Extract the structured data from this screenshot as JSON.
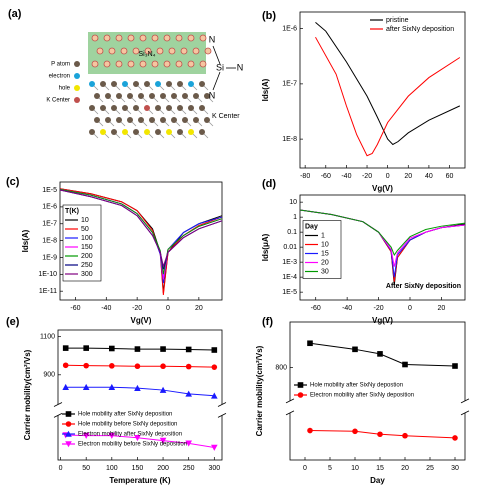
{
  "panel_a": {
    "label": "(a)",
    "layer": "Si₃N₄",
    "legend": [
      "P atom",
      "electron",
      "hole",
      "K Center"
    ],
    "molecule": [
      "N",
      "N",
      "Si",
      "N"
    ],
    "k_center": "K Center"
  },
  "chart_data": [
    {
      "type": "line",
      "label": "(b)",
      "log": true,
      "xlabel": "Vg(V)",
      "ylabel": "Ids(A)",
      "xlim": [
        -85,
        75
      ],
      "xticks": [
        -80,
        -60,
        -40,
        -20,
        0,
        20,
        40,
        60
      ],
      "ylim": [
        3e-09,
        2e-06
      ],
      "yticks": [
        {
          "value": 1e-08,
          "label": "1E-8"
        },
        {
          "value": 1e-07,
          "label": "1E-7"
        },
        {
          "value": 1e-06,
          "label": "1E-6"
        }
      ],
      "legend": "upper right",
      "series": [
        {
          "name": "pristine",
          "color": "#000000",
          "x": [
            -70,
            -60,
            -40,
            -20,
            -10,
            0,
            5,
            10,
            20,
            40,
            70
          ],
          "values": [
            1.3e-06,
            9e-07,
            2.5e-07,
            6e-08,
            2.5e-08,
            1e-08,
            8e-09,
            9e-09,
            1.3e-08,
            2.2e-08,
            4e-08
          ]
        },
        {
          "name": "after SixNy deposition",
          "color": "#ff0000",
          "x": [
            -70,
            -50,
            -40,
            -30,
            -20,
            -15,
            -10,
            0,
            20,
            40,
            70
          ],
          "values": [
            7e-07,
            1.5e-07,
            4e-08,
            1.2e-08,
            5e-09,
            5.5e-09,
            8e-09,
            2e-08,
            6e-08,
            1.3e-07,
            3e-07
          ]
        }
      ]
    },
    {
      "type": "line",
      "label": "(c)",
      "log": true,
      "xlabel": "Vg(V)",
      "ylabel": "Ids(A)",
      "xlim": [
        -70,
        35
      ],
      "xticks": [
        -60,
        -40,
        -20,
        0,
        20
      ],
      "ylim": [
        3e-12,
        3e-05
      ],
      "yticks": [
        {
          "value": 1e-11,
          "label": "1E-11"
        },
        {
          "value": 1e-10,
          "label": "1E-10"
        },
        {
          "value": 1e-09,
          "label": "1E-9"
        },
        {
          "value": 1e-08,
          "label": "1E-8"
        },
        {
          "value": 1e-07,
          "label": "1E-7"
        },
        {
          "value": 1e-06,
          "label": "1E-6"
        },
        {
          "value": 1e-05,
          "label": "1E-5"
        }
      ],
      "legend": "center left",
      "legend_title": "T(K)",
      "x": [
        -70,
        -50,
        -30,
        -20,
        -10,
        -5,
        -3,
        0,
        10,
        20,
        35
      ],
      "series": [
        {
          "name": "10",
          "color": "#000000",
          "values": [
            1.2e-05,
            6e-06,
            2e-06,
            6e-07,
            5e-08,
            2e-09,
            8e-12,
            2e-09,
            3e-08,
            1e-07,
            3e-07
          ]
        },
        {
          "name": "50",
          "color": "#ff0000",
          "values": [
            1.2e-05,
            6e-06,
            2e-06,
            6e-07,
            4e-08,
            1.5e-09,
            6e-12,
            2e-09,
            2e-08,
            8e-08,
            2.5e-07
          ]
        },
        {
          "name": "100",
          "color": "#1a1aff",
          "values": [
            1.1e-05,
            5e-06,
            1.5e-06,
            4e-07,
            3e-08,
            1.5e-09,
            3e-11,
            3e-09,
            3e-08,
            1e-07,
            2.5e-07
          ]
        },
        {
          "name": "150",
          "color": "#ff00ff",
          "values": [
            1.1e-05,
            5e-06,
            1.5e-06,
            4e-07,
            3e-08,
            2e-09,
            5e-11,
            3e-09,
            2e-08,
            7e-08,
            2e-07
          ]
        },
        {
          "name": "200",
          "color": "#009900",
          "values": [
            1.1e-05,
            5e-06,
            1.5e-06,
            4e-07,
            3e-08,
            2.5e-09,
            1e-10,
            3e-09,
            2e-08,
            7e-08,
            2e-07
          ]
        },
        {
          "name": "250",
          "color": "#000080",
          "values": [
            1e-05,
            4e-06,
            1.2e-06,
            3e-07,
            2e-08,
            2e-09,
            2e-10,
            2e-09,
            1.5e-08,
            5e-08,
            1.5e-07
          ]
        },
        {
          "name": "300",
          "color": "#800080",
          "values": [
            1e-05,
            4e-06,
            1.2e-06,
            3e-07,
            2e-08,
            2e-09,
            3e-10,
            2e-09,
            1.5e-08,
            5e-08,
            1.5e-07
          ]
        }
      ]
    },
    {
      "type": "line",
      "label": "(d)",
      "log": true,
      "xlabel": "Vg(V)",
      "ylabel": "Ids(μA)",
      "xlim": [
        -70,
        35
      ],
      "xticks": [
        -60,
        -40,
        -20,
        0,
        20
      ],
      "ylim": [
        3e-06,
        30
      ],
      "yticks": [
        {
          "value": 1e-05,
          "label": "1E-5"
        },
        {
          "value": 0.0001,
          "label": "1E-4"
        },
        {
          "value": 0.001,
          "label": "1E-3"
        },
        0.01,
        0.1,
        1,
        10
      ],
      "legend": "center left",
      "legend_title": "Day",
      "annotation": "After SixNy deposition",
      "x": [
        -70,
        -50,
        -30,
        -20,
        -12,
        -10,
        -8,
        0,
        10,
        20,
        35
      ],
      "series": [
        {
          "name": "1",
          "color": "#000000",
          "values": [
            3,
            1.5,
            0.5,
            0.1,
            0.005,
            3e-05,
            0.002,
            0.03,
            0.1,
            0.2,
            0.35
          ]
        },
        {
          "name": "10",
          "color": "#ff0000",
          "values": [
            3,
            1.5,
            0.5,
            0.1,
            0.005,
            5e-05,
            0.002,
            0.03,
            0.1,
            0.2,
            0.3
          ]
        },
        {
          "name": "15",
          "color": "#1a1aff",
          "values": [
            3,
            1.5,
            0.5,
            0.1,
            0.006,
            0.0001,
            0.003,
            0.03,
            0.1,
            0.2,
            0.3
          ]
        },
        {
          "name": "20",
          "color": "#ff00ff",
          "values": [
            3,
            1.5,
            0.5,
            0.1,
            0.007,
            0.0005,
            0.004,
            0.04,
            0.1,
            0.2,
            0.3
          ]
        },
        {
          "name": "30",
          "color": "#009900",
          "values": [
            3,
            1.5,
            0.5,
            0.1,
            0.01,
            0.003,
            0.006,
            0.05,
            0.15,
            0.25,
            0.4
          ]
        }
      ]
    },
    {
      "type": "line",
      "label": "(e)",
      "xlabel": "Temperature (K)",
      "ylabel": "Carrier mobility(cm²/Vs)",
      "xlim": [
        -5,
        315
      ],
      "xticks": [
        0,
        50,
        100,
        150,
        200,
        250,
        300
      ],
      "y_segments": [
        {
          "lim": [
            760,
            1135
          ],
          "ticks": [
            900,
            1100
          ]
        },
        {
          "lim": [
            0,
            150
          ]
        }
      ],
      "legend": "lower left",
      "x": [
        10,
        50,
        100,
        150,
        200,
        250,
        300
      ],
      "series": [
        {
          "name": "Hole mobility after SixNy deposition",
          "color": "#000000",
          "marker": "square",
          "segment": 0,
          "values": [
            1040,
            1040,
            1038,
            1035,
            1035,
            1033,
            1030
          ]
        },
        {
          "name": "Hole mobility before SixNy deposition",
          "color": "#ff0000",
          "marker": "circle",
          "segment": 0,
          "values": [
            950,
            948,
            947,
            945,
            945,
            943,
            940
          ]
        },
        {
          "name": "Electron mobility after SixNy deposition",
          "color": "#1a1aff",
          "marker": "triangle",
          "segment": 0,
          "values": [
            835,
            835,
            835,
            830,
            820,
            800,
            790
          ]
        },
        {
          "name": "Electron mobility before SixNy deposition",
          "color": "#ff00ff",
          "marker": "down-triangle",
          "segment": 1,
          "values": [
            90,
            88,
            88,
            80,
            70,
            60,
            45
          ]
        }
      ]
    },
    {
      "type": "line",
      "label": "(f)",
      "xlabel": "Day",
      "ylabel": "Carrier mobility(cm²/Vs)",
      "xlim": [
        -3,
        32
      ],
      "xticks": [
        0,
        5,
        10,
        15,
        20,
        25,
        30
      ],
      "y_segments": [
        {
          "lim": [
            700,
            950
          ],
          "ticks": [
            800
          ]
        },
        {
          "lim": [
            0,
            300
          ]
        }
      ],
      "legend": "center",
      "x": [
        1,
        10,
        15,
        20,
        30
      ],
      "series": [
        {
          "name": "Hole mobility after SixNy depostion",
          "color": "#000000",
          "marker": "square",
          "segment": 0,
          "values": [
            880,
            860,
            845,
            810,
            805
          ]
        },
        {
          "name": "Electron mobility after SixNy deposition",
          "color": "#ff0000",
          "marker": "circle",
          "segment": 1,
          "values": [
            200,
            195,
            175,
            165,
            150
          ]
        }
      ]
    }
  ]
}
